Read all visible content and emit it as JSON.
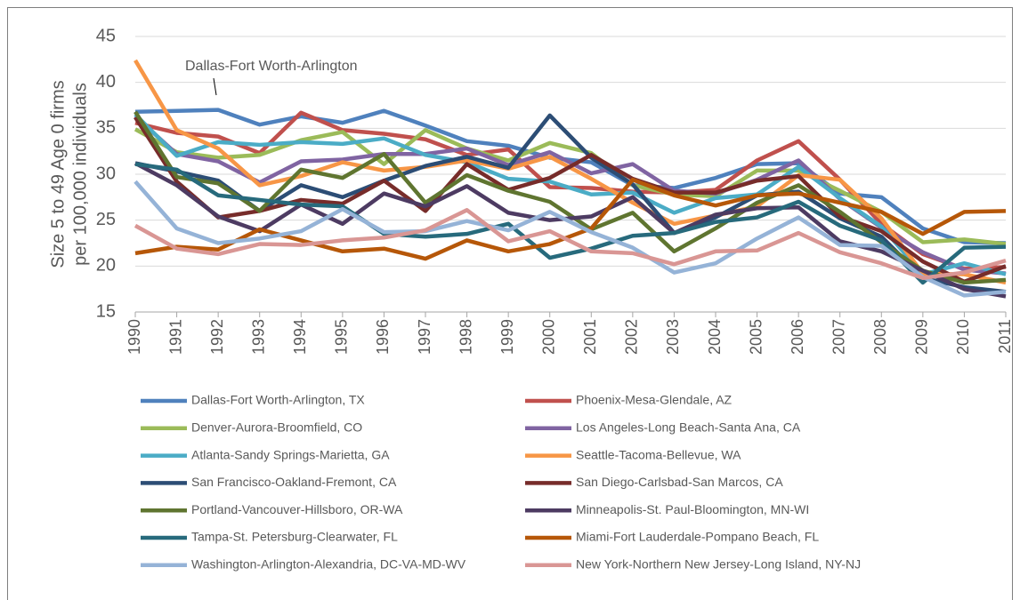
{
  "chart_data": {
    "type": "line",
    "y_label": [
      "Size 5 to 49 Age 0 firms",
      "per 100,000 individuals"
    ],
    "annotation": "Dallas-Fort Worth-Arlington",
    "categories": [
      "1990",
      "1991",
      "1992",
      "1993",
      "1994",
      "1995",
      "1996",
      "1997",
      "1998",
      "1999",
      "2000",
      "2001",
      "2002",
      "2003",
      "2004",
      "2005",
      "2006",
      "2007",
      "2008",
      "2009",
      "2010",
      "2011"
    ],
    "ylim": [
      15,
      45
    ],
    "yticks": [
      15,
      20,
      25,
      30,
      35,
      40,
      45
    ],
    "grid": true,
    "series": [
      {
        "name": "Dallas-Fort Worth-Arlington, TX",
        "color": "#4f81bd",
        "values": [
          36.8,
          36.9,
          37.0,
          35.4,
          36.3,
          35.6,
          36.9,
          35.3,
          33.6,
          33.1,
          31.8,
          31.3,
          28.8,
          28.5,
          29.6,
          31.1,
          31.2,
          27.9,
          27.5,
          24.1,
          22.6,
          22.5
        ]
      },
      {
        "name": "Phoenix-Mesa-Glendale, AZ",
        "color": "#c0504d",
        "values": [
          35.6,
          34.5,
          34.1,
          32.3,
          36.7,
          34.8,
          34.4,
          33.8,
          32.1,
          32.7,
          28.6,
          28.5,
          28.1,
          28.0,
          28.3,
          31.5,
          33.6,
          29.4,
          24.6,
          21.3,
          19.7,
          19.9
        ]
      },
      {
        "name": "Denver-Aurora-Broomfield, CO",
        "color": "#9bbb59",
        "values": [
          34.9,
          32.4,
          31.8,
          32.1,
          33.7,
          34.6,
          31.1,
          34.8,
          32.8,
          31.5,
          33.4,
          32.3,
          28.8,
          27.8,
          27.6,
          30.4,
          30.4,
          28.2,
          25.9,
          22.6,
          22.9,
          22.4
        ]
      },
      {
        "name": "Los Angeles-Long Beach-Santa Ana, CA",
        "color": "#8064a2",
        "values": [
          36.3,
          32.2,
          31.4,
          29.1,
          31.4,
          31.6,
          32.2,
          32.2,
          32.8,
          31.0,
          32.4,
          30.1,
          31.1,
          28.2,
          27.9,
          29.4,
          31.5,
          27.3,
          24.2,
          21.5,
          19.6,
          19.2
        ]
      },
      {
        "name": "Atlanta-Sandy Springs-Marietta, GA",
        "color": "#4bacc6",
        "values": [
          36.5,
          32.0,
          33.5,
          33.2,
          33.5,
          33.3,
          33.9,
          32.1,
          31.3,
          29.5,
          29.2,
          27.8,
          28.0,
          25.8,
          27.4,
          27.8,
          30.8,
          27.4,
          24.3,
          19.1,
          20.3,
          19.1
        ]
      },
      {
        "name": "Seattle-Tacoma-Bellevue, WA",
        "color": "#f79646",
        "values": [
          42.4,
          34.8,
          32.8,
          28.8,
          29.8,
          31.3,
          30.4,
          30.8,
          31.5,
          30.6,
          31.9,
          29.5,
          26.9,
          24.6,
          25.5,
          26.5,
          29.9,
          29.4,
          25.2,
          19.2,
          19.1,
          18.2
        ]
      },
      {
        "name": "San Francisco-Oakland-Fremont, CA",
        "color": "#2c4d75",
        "values": [
          31.2,
          30.3,
          29.3,
          26.0,
          28.8,
          27.5,
          29.3,
          30.9,
          31.9,
          30.7,
          36.4,
          31.8,
          28.9,
          23.6,
          25.3,
          27.7,
          28.1,
          25.2,
          23.2,
          18.7,
          17.7,
          17.2
        ]
      },
      {
        "name": "San Diego-Carlsbad-San Marcos, CA",
        "color": "#772c2a",
        "values": [
          36.2,
          29.2,
          25.3,
          26.0,
          27.2,
          26.8,
          29.3,
          26.0,
          31.1,
          28.3,
          29.6,
          32.1,
          29.5,
          28.0,
          28.0,
          29.3,
          29.8,
          25.4,
          23.8,
          20.5,
          18.3,
          20.0
        ]
      },
      {
        "name": "Portland-Vancouver-Hillsboro, OR-WA",
        "color": "#5f7530",
        "values": [
          36.8,
          29.7,
          29.0,
          26.0,
          30.5,
          29.6,
          32.2,
          26.9,
          29.9,
          28.2,
          27.0,
          24.0,
          25.8,
          21.6,
          24.1,
          26.9,
          28.8,
          25.9,
          22.6,
          19.5,
          18.2,
          18.5
        ]
      },
      {
        "name": "Minneapolis-St. Paul-Bloomington, MN-WI",
        "color": "#4d3b62",
        "values": [
          31.2,
          28.8,
          25.4,
          23.8,
          26.7,
          24.6,
          27.9,
          26.5,
          28.7,
          25.8,
          25.0,
          25.4,
          27.5,
          23.6,
          25.6,
          26.3,
          26.4,
          22.7,
          21.6,
          19.5,
          17.5,
          16.7
        ]
      },
      {
        "name": "Tampa-St. Petersburg-Clearwater, FL",
        "color": "#276a7c",
        "values": [
          31.1,
          30.5,
          27.7,
          27.2,
          26.7,
          26.5,
          23.5,
          23.2,
          23.5,
          24.6,
          20.9,
          21.9,
          23.3,
          23.6,
          24.8,
          25.3,
          27.0,
          24.4,
          22.8,
          18.2,
          22.0,
          22.1
        ]
      },
      {
        "name": "Miami-Fort Lauderdale-Pompano Beach, FL",
        "color": "#b65708",
        "values": [
          21.4,
          22.1,
          21.8,
          24.0,
          22.8,
          21.6,
          21.9,
          20.8,
          22.8,
          21.6,
          22.4,
          24.1,
          29.4,
          27.7,
          26.6,
          27.7,
          27.9,
          26.9,
          25.9,
          23.5,
          25.9,
          26.0
        ]
      },
      {
        "name": "Washington-Arlington-Alexandria, DC-VA-MD-WV",
        "color": "#95b3d7",
        "values": [
          29.2,
          24.1,
          22.5,
          23.0,
          23.8,
          26.2,
          23.7,
          23.8,
          24.9,
          23.9,
          25.9,
          23.7,
          22.0,
          19.3,
          20.3,
          23.0,
          25.3,
          22.3,
          22.2,
          18.8,
          16.8,
          17.2
        ]
      },
      {
        "name": "New York-Northern New Jersey-Long Island, NY-NJ",
        "color": "#d99694",
        "values": [
          24.4,
          21.9,
          21.3,
          22.4,
          22.3,
          22.8,
          23.1,
          23.9,
          26.1,
          22.7,
          23.8,
          21.6,
          21.4,
          20.2,
          21.6,
          21.7,
          23.6,
          21.5,
          20.3,
          18.7,
          19.3,
          20.6
        ]
      }
    ]
  }
}
